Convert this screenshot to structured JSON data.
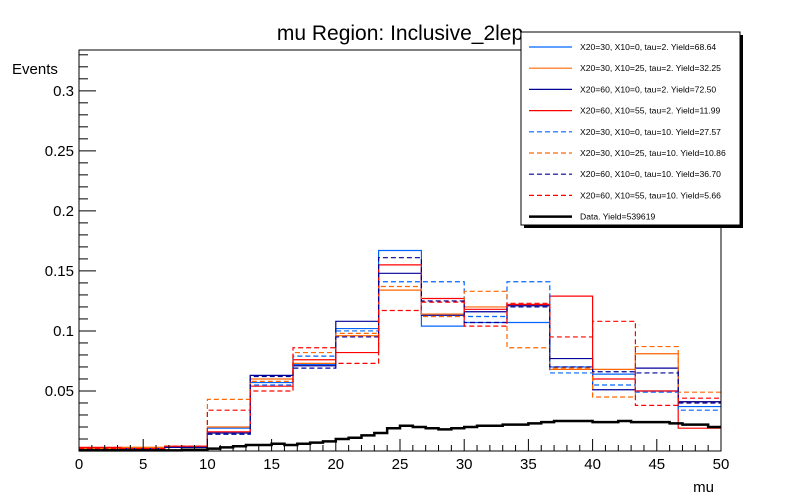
{
  "chart_data": {
    "type": "line",
    "title": "mu Region: Inclusive_2lep",
    "xlabel": "mu",
    "ylabel": "Events",
    "xlim": [
      0,
      50
    ],
    "ylim": [
      0,
      0.334
    ],
    "grid": false,
    "legend_placement": "top-right",
    "xticks": [
      "0",
      "5",
      "10",
      "15",
      "20",
      "25",
      "30",
      "35",
      "40",
      "45",
      "50"
    ],
    "yticks": [
      "0.05",
      "0.1",
      "0.15",
      "0.2",
      "0.25",
      "0.3"
    ],
    "bin_edges": [
      0,
      3.333,
      6.667,
      10,
      13.333,
      16.667,
      20,
      23.333,
      26.667,
      30,
      33.333,
      36.667,
      40,
      43.333,
      46.667,
      50
    ],
    "series": [
      {
        "name": "X20=30, X10=0, tau=2. Yield=68.64",
        "color": "#0066ff",
        "style": "solid",
        "values": [
          0.002,
          0.002,
          0.003,
          0.019,
          0.057,
          0.072,
          0.102,
          0.167,
          0.104,
          0.107,
          0.107,
          0.07,
          0.064,
          0.05,
          0.037
        ]
      },
      {
        "name": "X20=30, X10=25, tau=2. Yield=32.25",
        "color": "#ff6600",
        "style": "solid",
        "values": [
          0.002,
          0.003,
          0.003,
          0.02,
          0.06,
          0.073,
          0.096,
          0.134,
          0.114,
          0.12,
          0.122,
          0.068,
          0.068,
          0.081,
          0.041
        ]
      },
      {
        "name": "X20=60, X10=0, tau=2. Yield=72.50",
        "color": "#000099",
        "style": "solid",
        "values": [
          0.001,
          0.002,
          0.003,
          0.015,
          0.063,
          0.071,
          0.108,
          0.148,
          0.113,
          0.116,
          0.121,
          0.077,
          0.051,
          0.069,
          0.041
        ]
      },
      {
        "name": "X20=60, X10=55, tau=2. Yield=11.99",
        "color": "#ff0000",
        "style": "solid",
        "values": [
          0.003,
          0.002,
          0.004,
          0.016,
          0.054,
          0.076,
          0.082,
          0.155,
          0.127,
          0.118,
          0.122,
          0.129,
          0.06,
          0.05,
          0.019
        ]
      },
      {
        "name": "X20=30, X10=0, tau=10. Yield=27.57",
        "color": "#0066ff",
        "style": "dashed",
        "values": [
          0.001,
          0.002,
          0.003,
          0.014,
          0.055,
          0.079,
          0.1,
          0.141,
          0.141,
          0.112,
          0.141,
          0.065,
          0.055,
          0.049,
          0.034
        ]
      },
      {
        "name": "X20=30, X10=25, tau=10. Yield=10.86",
        "color": "#ff6600",
        "style": "dashed",
        "values": [
          0.002,
          0.003,
          0.004,
          0.043,
          0.058,
          0.082,
          0.098,
          0.137,
          0.112,
          0.133,
          0.086,
          0.069,
          0.045,
          0.087,
          0.049
        ]
      },
      {
        "name": "X20=60, X10=0, tau=10. Yield=36.70",
        "color": "#000099",
        "style": "dashed",
        "values": [
          0.001,
          0.002,
          0.003,
          0.014,
          0.062,
          0.069,
          0.095,
          0.161,
          0.125,
          0.107,
          0.12,
          0.07,
          0.066,
          0.065,
          0.04
        ]
      },
      {
        "name": "X20=60, X10=55, tau=10. Yield=5.66",
        "color": "#ff0000",
        "style": "dashed",
        "values": [
          0.002,
          0.002,
          0.004,
          0.034,
          0.05,
          0.086,
          0.073,
          0.117,
          0.124,
          0.104,
          0.123,
          0.095,
          0.108,
          0.038,
          0.044
        ]
      }
    ],
    "data_series": {
      "name": "Data. Yield=539619",
      "color": "#000000",
      "style": "thick",
      "bin_width": 1,
      "values": [
        0,
        0,
        0,
        0,
        0,
        0,
        0,
        0,
        0.001,
        0.001,
        0.002,
        0.003,
        0.004,
        0.005,
        0.005,
        0.006,
        0.005,
        0.006,
        0.007,
        0.008,
        0.01,
        0.011,
        0.013,
        0.015,
        0.019,
        0.021,
        0.02,
        0.019,
        0.018,
        0.019,
        0.02,
        0.021,
        0.021,
        0.022,
        0.022,
        0.023,
        0.024,
        0.025,
        0.025,
        0.025,
        0.024,
        0.024,
        0.025,
        0.024,
        0.024,
        0.024,
        0.023,
        0.022,
        0.022,
        0.02
      ]
    }
  }
}
